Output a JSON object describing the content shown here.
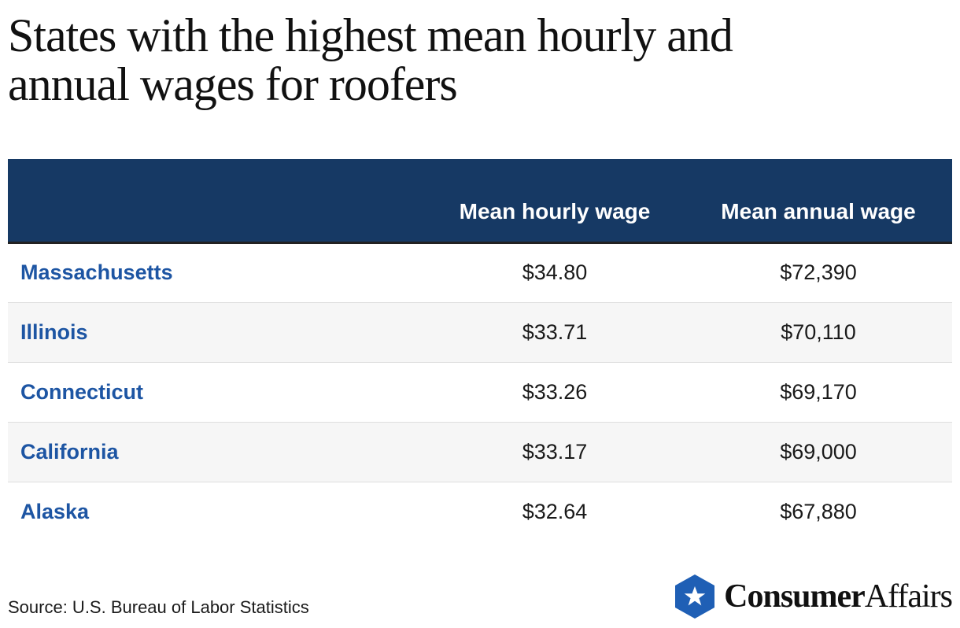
{
  "title": "States with the highest mean hourly and annual wages for roofers",
  "chart_data": {
    "type": "table",
    "title": "States with the highest mean hourly and annual wages for roofers",
    "columns": [
      "",
      "Mean hourly wage",
      "Mean annual wage"
    ],
    "rows": [
      {
        "state": "Massachusetts",
        "hourly": "$34.80",
        "annual": "$72,390"
      },
      {
        "state": "Illinois",
        "hourly": "$33.71",
        "annual": "$70,110"
      },
      {
        "state": "Connecticut",
        "hourly": "$33.26",
        "annual": "$69,170"
      },
      {
        "state": "California",
        "hourly": "$33.17",
        "annual": "$69,000"
      },
      {
        "state": "Alaska",
        "hourly": "$32.64",
        "annual": "$67,880"
      }
    ]
  },
  "source": "Source: U.S. Bureau of Labor Statistics",
  "logo": {
    "text_bold": "Consumer",
    "text_light": "Affairs",
    "icon": "star-hexagon-icon"
  },
  "colors": {
    "header_bg": "#163964",
    "state_text": "#1d55a3",
    "logo_blue": "#1f5fb5"
  }
}
